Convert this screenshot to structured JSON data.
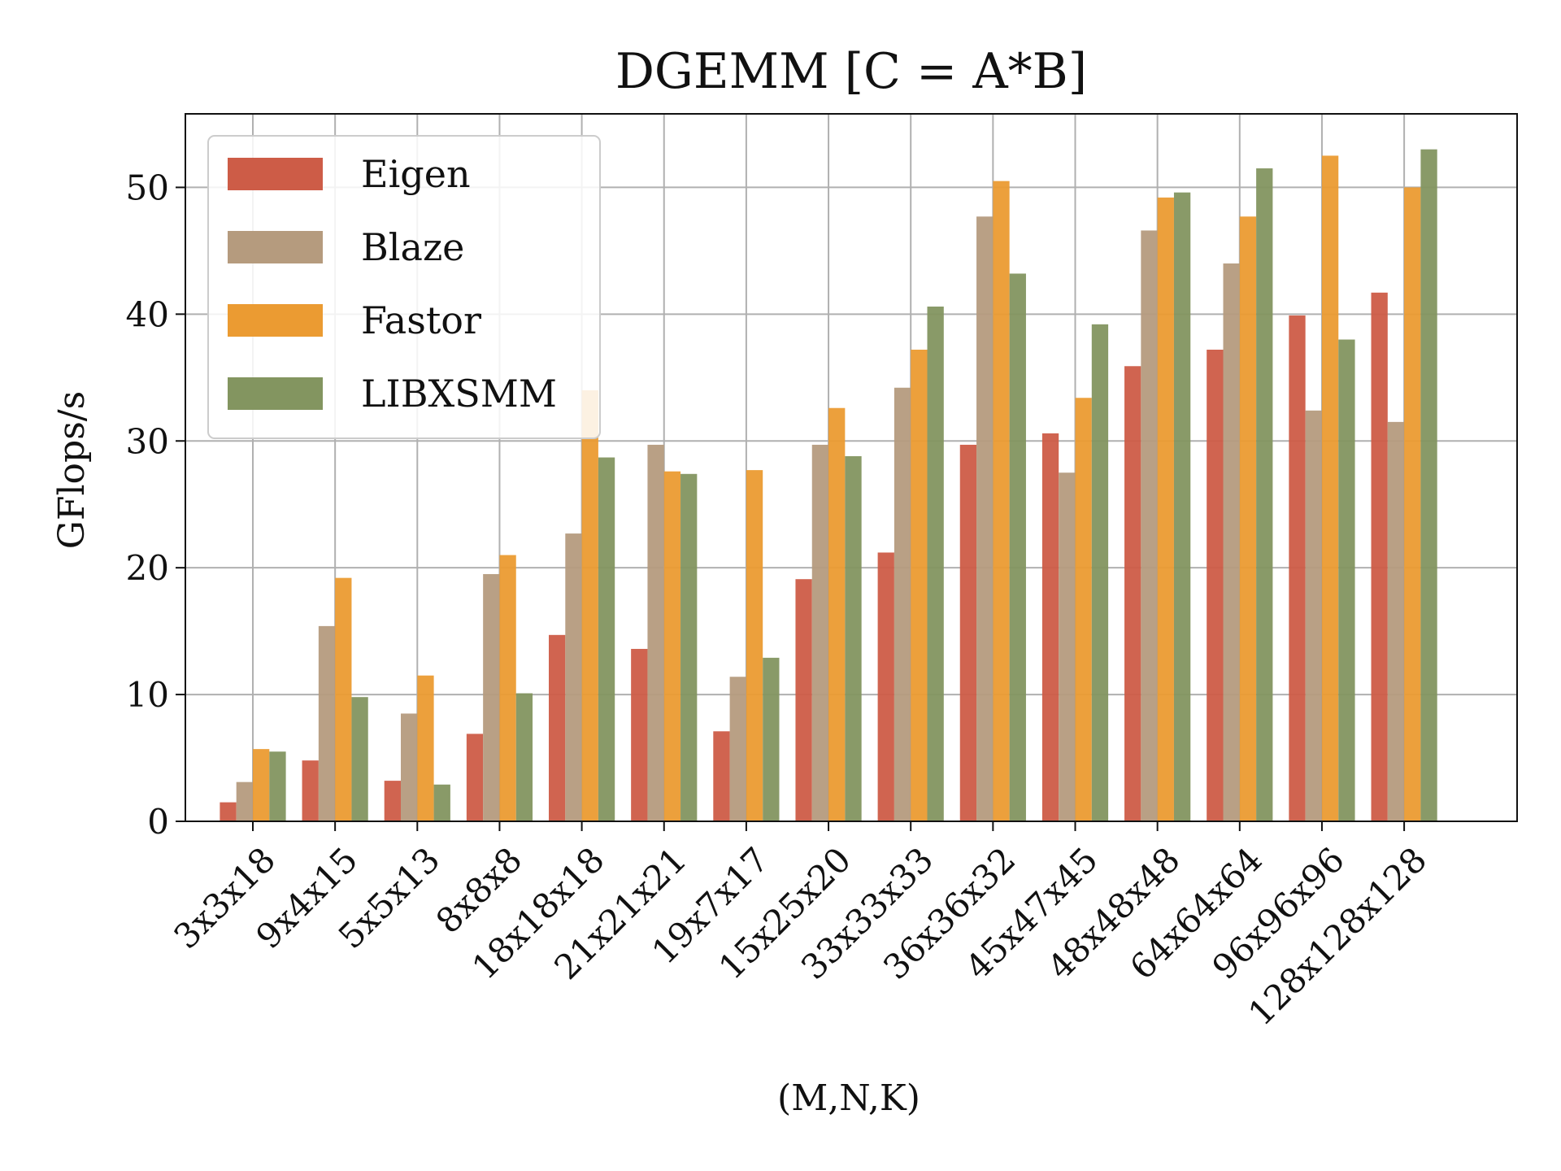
{
  "chart_data": {
    "type": "bar",
    "title": "DGEMM [C = A*B]",
    "xlabel": "(M,N,K)",
    "ylabel": "GFlops/s",
    "ylim": [
      0,
      55.8
    ],
    "yticks": [
      0,
      10,
      20,
      30,
      40,
      50
    ],
    "grid": true,
    "legend_position": "top-left",
    "categories": [
      "3x3x18",
      "9x4x15",
      "5x5x13",
      "8x8x8",
      "18x18x18",
      "21x21x21",
      "19x7x17",
      "15x25x20",
      "33x33x33",
      "36x36x32",
      "45x47x45",
      "48x48x48",
      "64x64x64",
      "96x96x96",
      "128x128x128"
    ],
    "series": [
      {
        "name": "Eigen",
        "color": "#cd5c47",
        "values": [
          1.5,
          4.8,
          3.2,
          6.9,
          14.7,
          13.6,
          7.1,
          19.1,
          21.2,
          29.7,
          30.6,
          35.9,
          37.2,
          39.9,
          41.7
        ]
      },
      {
        "name": "Blaze",
        "color": "#b59b7e",
        "values": [
          3.1,
          15.4,
          8.5,
          19.5,
          22.7,
          29.7,
          11.4,
          29.7,
          34.2,
          47.7,
          27.5,
          46.6,
          44.0,
          32.4,
          31.5
        ]
      },
      {
        "name": "Fastor",
        "color": "#eb9b32",
        "values": [
          5.7,
          19.2,
          11.5,
          21.0,
          34.0,
          27.6,
          27.7,
          32.6,
          37.2,
          50.5,
          33.4,
          49.2,
          47.7,
          52.5,
          50.0
        ]
      },
      {
        "name": "LIBXSMM",
        "color": "#839560",
        "values": [
          5.5,
          9.8,
          2.9,
          10.1,
          28.7,
          27.4,
          12.9,
          28.8,
          40.6,
          43.2,
          39.2,
          49.6,
          51.5,
          38.0,
          53.0
        ]
      }
    ]
  }
}
